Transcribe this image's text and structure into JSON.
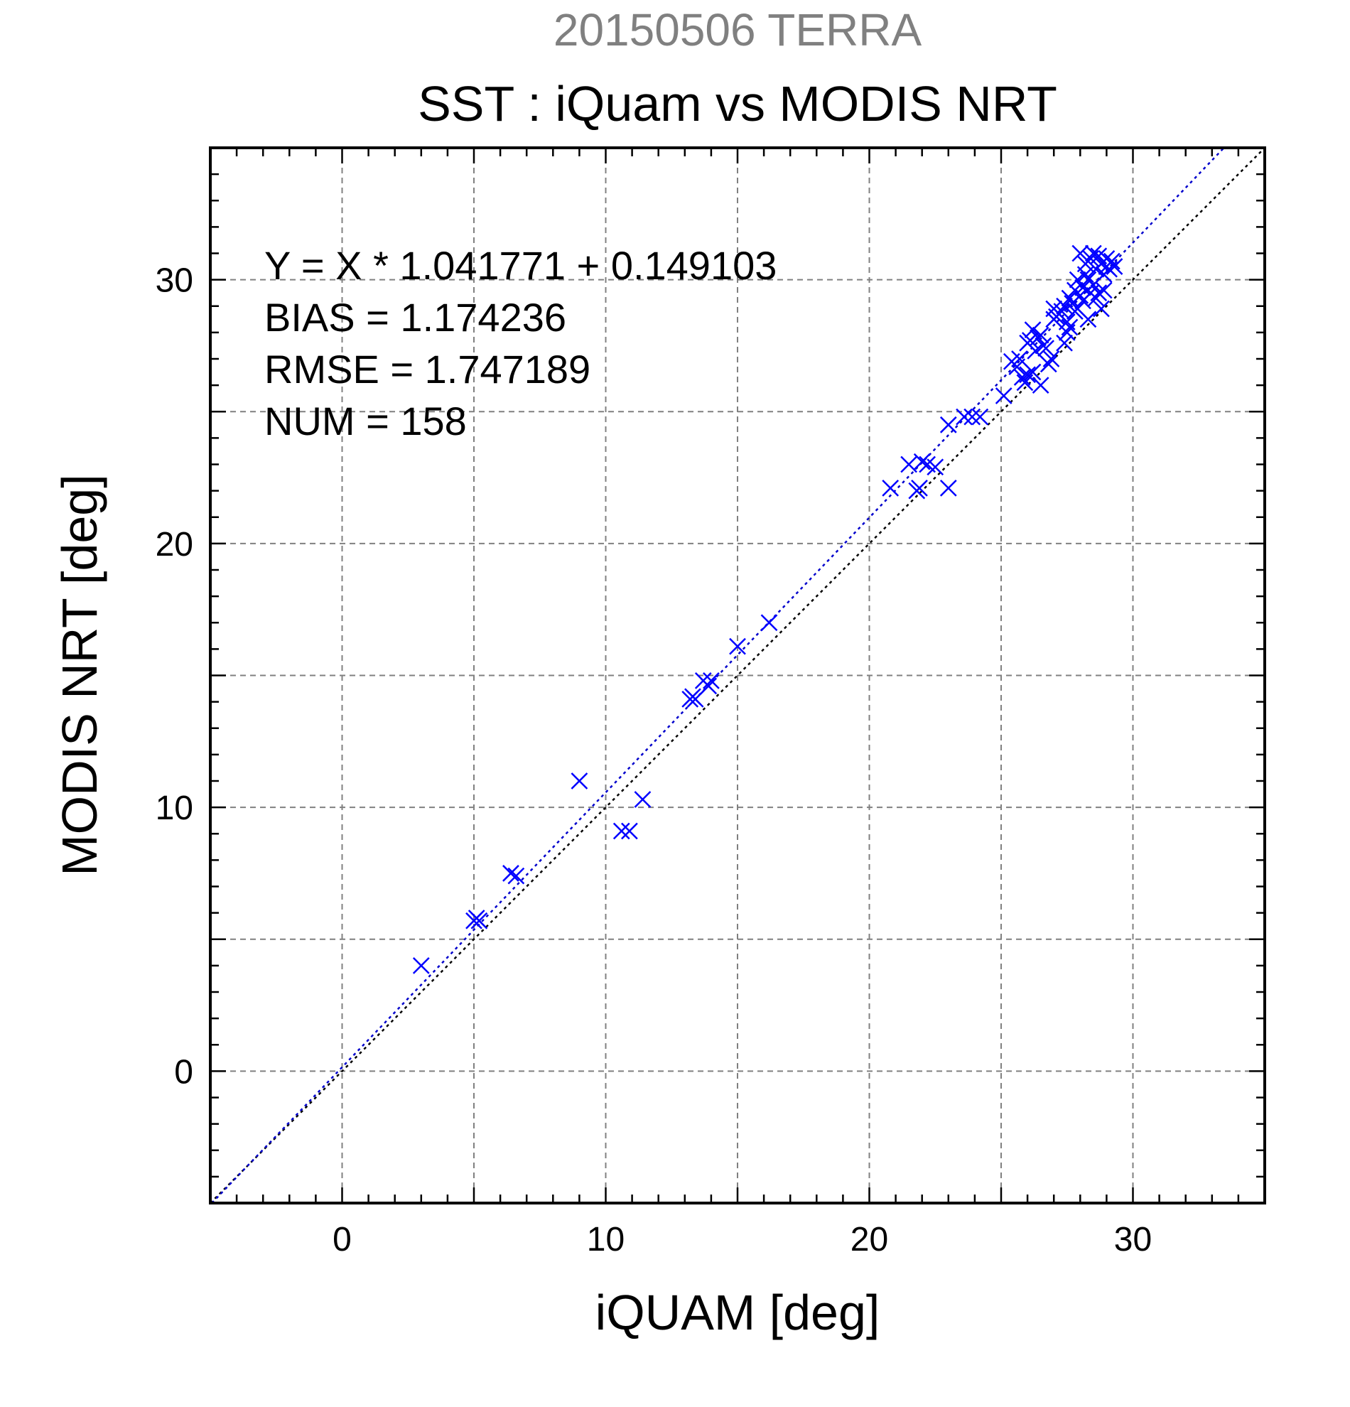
{
  "chart_data": {
    "type": "scatter",
    "subtitle": "20150506 TERRA",
    "title": "SST : iQuam vs MODIS NRT",
    "xlabel": "iQUAM [deg]",
    "ylabel": "MODIS NRT [deg]",
    "xlim": [
      -5,
      35
    ],
    "ylim": [
      -5,
      35
    ],
    "xticks": [
      0,
      10,
      20,
      30
    ],
    "yticks": [
      0,
      10,
      20,
      30
    ],
    "grid": true,
    "stats": {
      "equation": "Y = X * 1.041771 + 0.149103",
      "bias": "BIAS = 1.174236",
      "rmse": "RMSE = 1.747189",
      "num": "NUM = 158"
    },
    "regression": {
      "slope": 1.041771,
      "intercept": 0.149103
    },
    "identity_line": true,
    "colors": {
      "points": "#0000ff",
      "regression": "#0000cc",
      "identity": "#000000",
      "grid": "#808080",
      "subtitle": "#808080"
    },
    "points": [
      [
        3.0,
        4.0
      ],
      [
        5.0,
        5.7
      ],
      [
        5.1,
        5.8
      ],
      [
        5.2,
        5.7
      ],
      [
        6.4,
        7.5
      ],
      [
        6.6,
        7.4
      ],
      [
        9.0,
        11.0
      ],
      [
        10.6,
        9.1
      ],
      [
        10.9,
        9.1
      ],
      [
        11.4,
        10.3
      ],
      [
        13.2,
        14.1
      ],
      [
        13.3,
        14.2
      ],
      [
        13.4,
        14.1
      ],
      [
        13.7,
        14.8
      ],
      [
        13.9,
        14.6
      ],
      [
        14.0,
        14.8
      ],
      [
        15.0,
        16.1
      ],
      [
        16.2,
        17.0
      ],
      [
        20.8,
        22.1
      ],
      [
        21.5,
        23.0
      ],
      [
        21.8,
        22.0
      ],
      [
        21.9,
        22.1
      ],
      [
        22.0,
        23.1
      ],
      [
        22.2,
        23.0
      ],
      [
        22.5,
        22.9
      ],
      [
        23.0,
        22.1
      ],
      [
        23.0,
        24.5
      ],
      [
        23.6,
        24.8
      ],
      [
        23.9,
        24.8
      ],
      [
        24.2,
        24.8
      ],
      [
        25.1,
        25.6
      ],
      [
        25.4,
        26.9
      ],
      [
        25.6,
        26.7
      ],
      [
        25.7,
        27.0
      ],
      [
        25.8,
        26.3
      ],
      [
        25.9,
        26.1
      ],
      [
        26.0,
        26.4
      ],
      [
        26.0,
        27.6
      ],
      [
        26.1,
        27.7
      ],
      [
        26.2,
        28.1
      ],
      [
        26.2,
        26.5
      ],
      [
        26.3,
        27.3
      ],
      [
        26.4,
        27.8
      ],
      [
        26.5,
        26.0
      ],
      [
        26.5,
        27.9
      ],
      [
        26.6,
        27.5
      ],
      [
        26.7,
        27.4
      ],
      [
        26.8,
        26.8
      ],
      [
        26.9,
        27.0
      ],
      [
        27.0,
        28.5
      ],
      [
        27.0,
        28.9
      ],
      [
        27.1,
        28.6
      ],
      [
        27.2,
        28.7
      ],
      [
        27.3,
        28.8
      ],
      [
        27.4,
        27.6
      ],
      [
        27.4,
        29.0
      ],
      [
        27.5,
        28.4
      ],
      [
        27.5,
        28.0
      ],
      [
        27.6,
        29.3
      ],
      [
        27.6,
        28.2
      ],
      [
        27.7,
        29.1
      ],
      [
        27.8,
        29.6
      ],
      [
        27.8,
        28.8
      ],
      [
        27.9,
        30.0
      ],
      [
        27.9,
        28.9
      ],
      [
        28.0,
        29.4
      ],
      [
        28.0,
        31.0
      ],
      [
        28.1,
        29.7
      ],
      [
        28.1,
        29.2
      ],
      [
        28.2,
        30.2
      ],
      [
        28.2,
        30.6
      ],
      [
        28.3,
        30.0
      ],
      [
        28.3,
        28.5
      ],
      [
        28.4,
        29.5
      ],
      [
        28.4,
        30.8
      ],
      [
        28.5,
        31.0
      ],
      [
        28.5,
        29.8
      ],
      [
        28.6,
        29.3
      ],
      [
        28.6,
        30.4
      ],
      [
        28.7,
        30.9
      ],
      [
        28.7,
        29.5
      ],
      [
        28.8,
        30.6
      ],
      [
        28.8,
        28.9
      ],
      [
        28.9,
        30.2
      ],
      [
        28.9,
        29.6
      ],
      [
        29.0,
        30.8
      ],
      [
        29.0,
        30.5
      ],
      [
        29.1,
        30.4
      ],
      [
        29.2,
        30.7
      ],
      [
        29.3,
        30.5
      ]
    ]
  }
}
